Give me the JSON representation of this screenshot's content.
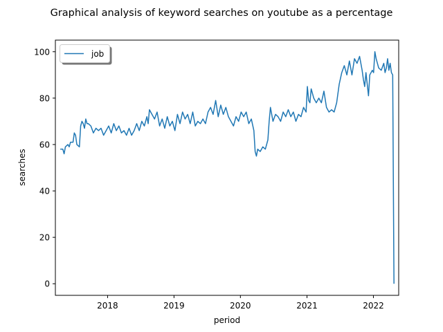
{
  "chart_data": {
    "type": "line",
    "title": "Graphical analysis of keyword searches on youtube as a percentage",
    "xlabel": "period",
    "ylabel": "searches",
    "xlim": [
      "2017-03-20",
      "2022-05-20"
    ],
    "ylim": [
      -5,
      105
    ],
    "xticks": [
      {
        "date": "2018-01-01",
        "label": "2018"
      },
      {
        "date": "2019-01-01",
        "label": "2019"
      },
      {
        "date": "2020-01-01",
        "label": "2020"
      },
      {
        "date": "2021-01-01",
        "label": "2021"
      },
      {
        "date": "2022-01-01",
        "label": "2022"
      }
    ],
    "yticks": [
      0,
      20,
      40,
      60,
      80,
      100
    ],
    "grid": false,
    "legend_position": "upper left",
    "colors": {
      "series": "#1f77b4"
    },
    "series": [
      {
        "name": "job",
        "points": [
          [
            "2017-04-16",
            58
          ],
          [
            "2017-04-30",
            58
          ],
          [
            "2017-05-07",
            56
          ],
          [
            "2017-05-14",
            59
          ],
          [
            "2017-05-28",
            60
          ],
          [
            "2017-06-04",
            59
          ],
          [
            "2017-06-11",
            61
          ],
          [
            "2017-06-25",
            61
          ],
          [
            "2017-07-02",
            65
          ],
          [
            "2017-07-09",
            64
          ],
          [
            "2017-07-16",
            60
          ],
          [
            "2017-07-30",
            59
          ],
          [
            "2017-08-06",
            68
          ],
          [
            "2017-08-13",
            70
          ],
          [
            "2017-08-20",
            69
          ],
          [
            "2017-08-27",
            67
          ],
          [
            "2017-09-03",
            71
          ],
          [
            "2017-09-10",
            69
          ],
          [
            "2017-09-17",
            69
          ],
          [
            "2017-10-01",
            68
          ],
          [
            "2017-10-15",
            65
          ],
          [
            "2017-10-29",
            67
          ],
          [
            "2017-11-12",
            66
          ],
          [
            "2017-11-26",
            67
          ],
          [
            "2017-12-10",
            64
          ],
          [
            "2017-12-24",
            66
          ],
          [
            "2018-01-07",
            68
          ],
          [
            "2018-01-21",
            65
          ],
          [
            "2018-02-04",
            69
          ],
          [
            "2018-02-18",
            66
          ],
          [
            "2018-03-04",
            68
          ],
          [
            "2018-03-18",
            65
          ],
          [
            "2018-04-01",
            66
          ],
          [
            "2018-04-15",
            64
          ],
          [
            "2018-04-29",
            67
          ],
          [
            "2018-05-13",
            64
          ],
          [
            "2018-05-27",
            66
          ],
          [
            "2018-06-10",
            69
          ],
          [
            "2018-06-24",
            66
          ],
          [
            "2018-07-08",
            70
          ],
          [
            "2018-07-22",
            68
          ],
          [
            "2018-08-05",
            72
          ],
          [
            "2018-08-12",
            69
          ],
          [
            "2018-08-19",
            75
          ],
          [
            "2018-09-02",
            73
          ],
          [
            "2018-09-16",
            71
          ],
          [
            "2018-09-30",
            74
          ],
          [
            "2018-10-14",
            68
          ],
          [
            "2018-10-28",
            71
          ],
          [
            "2018-11-11",
            67
          ],
          [
            "2018-11-25",
            72
          ],
          [
            "2018-12-09",
            68
          ],
          [
            "2018-12-23",
            70
          ],
          [
            "2019-01-06",
            66
          ],
          [
            "2019-01-20",
            73
          ],
          [
            "2019-02-03",
            69
          ],
          [
            "2019-02-17",
            74
          ],
          [
            "2019-03-03",
            71
          ],
          [
            "2019-03-17",
            73
          ],
          [
            "2019-03-31",
            69
          ],
          [
            "2019-04-14",
            74
          ],
          [
            "2019-04-28",
            68
          ],
          [
            "2019-05-12",
            70
          ],
          [
            "2019-05-26",
            69
          ],
          [
            "2019-06-09",
            71
          ],
          [
            "2019-06-23",
            69
          ],
          [
            "2019-07-07",
            74
          ],
          [
            "2019-07-21",
            76
          ],
          [
            "2019-08-04",
            73
          ],
          [
            "2019-08-18",
            79
          ],
          [
            "2019-09-01",
            72
          ],
          [
            "2019-09-15",
            77
          ],
          [
            "2019-09-29",
            73
          ],
          [
            "2019-10-13",
            76
          ],
          [
            "2019-10-27",
            72
          ],
          [
            "2019-11-10",
            70
          ],
          [
            "2019-11-24",
            68
          ],
          [
            "2019-12-08",
            72
          ],
          [
            "2019-12-22",
            70
          ],
          [
            "2020-01-05",
            74
          ],
          [
            "2020-01-19",
            72
          ],
          [
            "2020-02-02",
            74
          ],
          [
            "2020-02-16",
            69
          ],
          [
            "2020-03-01",
            71
          ],
          [
            "2020-03-15",
            66
          ],
          [
            "2020-03-22",
            57
          ],
          [
            "2020-03-29",
            55
          ],
          [
            "2020-04-05",
            58
          ],
          [
            "2020-04-19",
            57
          ],
          [
            "2020-05-03",
            59
          ],
          [
            "2020-05-17",
            58
          ],
          [
            "2020-05-31",
            62
          ],
          [
            "2020-06-07",
            70
          ],
          [
            "2020-06-14",
            76
          ],
          [
            "2020-06-28",
            70
          ],
          [
            "2020-07-12",
            73
          ],
          [
            "2020-07-26",
            72
          ],
          [
            "2020-08-09",
            70
          ],
          [
            "2020-08-23",
            74
          ],
          [
            "2020-09-06",
            72
          ],
          [
            "2020-09-20",
            75
          ],
          [
            "2020-10-04",
            72
          ],
          [
            "2020-10-18",
            74
          ],
          [
            "2020-11-01",
            70
          ],
          [
            "2020-11-15",
            73
          ],
          [
            "2020-11-29",
            72
          ],
          [
            "2020-12-13",
            76
          ],
          [
            "2020-12-27",
            74
          ],
          [
            "2021-01-03",
            85
          ],
          [
            "2021-01-10",
            79
          ],
          [
            "2021-01-17",
            78
          ],
          [
            "2021-01-24",
            84
          ],
          [
            "2021-02-07",
            80
          ],
          [
            "2021-02-21",
            78
          ],
          [
            "2021-03-07",
            80
          ],
          [
            "2021-03-21",
            78
          ],
          [
            "2021-04-04",
            83
          ],
          [
            "2021-04-18",
            76
          ],
          [
            "2021-05-02",
            74
          ],
          [
            "2021-05-16",
            75
          ],
          [
            "2021-05-30",
            74
          ],
          [
            "2021-06-13",
            78
          ],
          [
            "2021-06-27",
            86
          ],
          [
            "2021-07-11",
            91
          ],
          [
            "2021-07-25",
            94
          ],
          [
            "2021-08-08",
            90
          ],
          [
            "2021-08-22",
            96
          ],
          [
            "2021-09-05",
            90
          ],
          [
            "2021-09-19",
            97
          ],
          [
            "2021-10-03",
            95
          ],
          [
            "2021-10-17",
            98
          ],
          [
            "2021-10-31",
            92
          ],
          [
            "2021-11-07",
            88
          ],
          [
            "2021-11-14",
            85
          ],
          [
            "2021-11-21",
            91
          ],
          [
            "2021-11-28",
            86
          ],
          [
            "2021-12-05",
            81
          ],
          [
            "2021-12-12",
            90
          ],
          [
            "2021-12-26",
            92
          ],
          [
            "2022-01-02",
            91
          ],
          [
            "2022-01-09",
            100
          ],
          [
            "2022-01-16",
            97
          ],
          [
            "2022-01-23",
            95
          ],
          [
            "2022-01-30",
            93
          ],
          [
            "2022-02-13",
            92
          ],
          [
            "2022-02-27",
            95
          ],
          [
            "2022-03-06",
            91
          ],
          [
            "2022-03-13",
            93
          ],
          [
            "2022-03-20",
            97
          ],
          [
            "2022-03-27",
            92
          ],
          [
            "2022-04-03",
            95
          ],
          [
            "2022-04-10",
            91
          ],
          [
            "2022-04-17",
            90
          ],
          [
            "2022-04-24",
            0
          ]
        ]
      }
    ]
  }
}
